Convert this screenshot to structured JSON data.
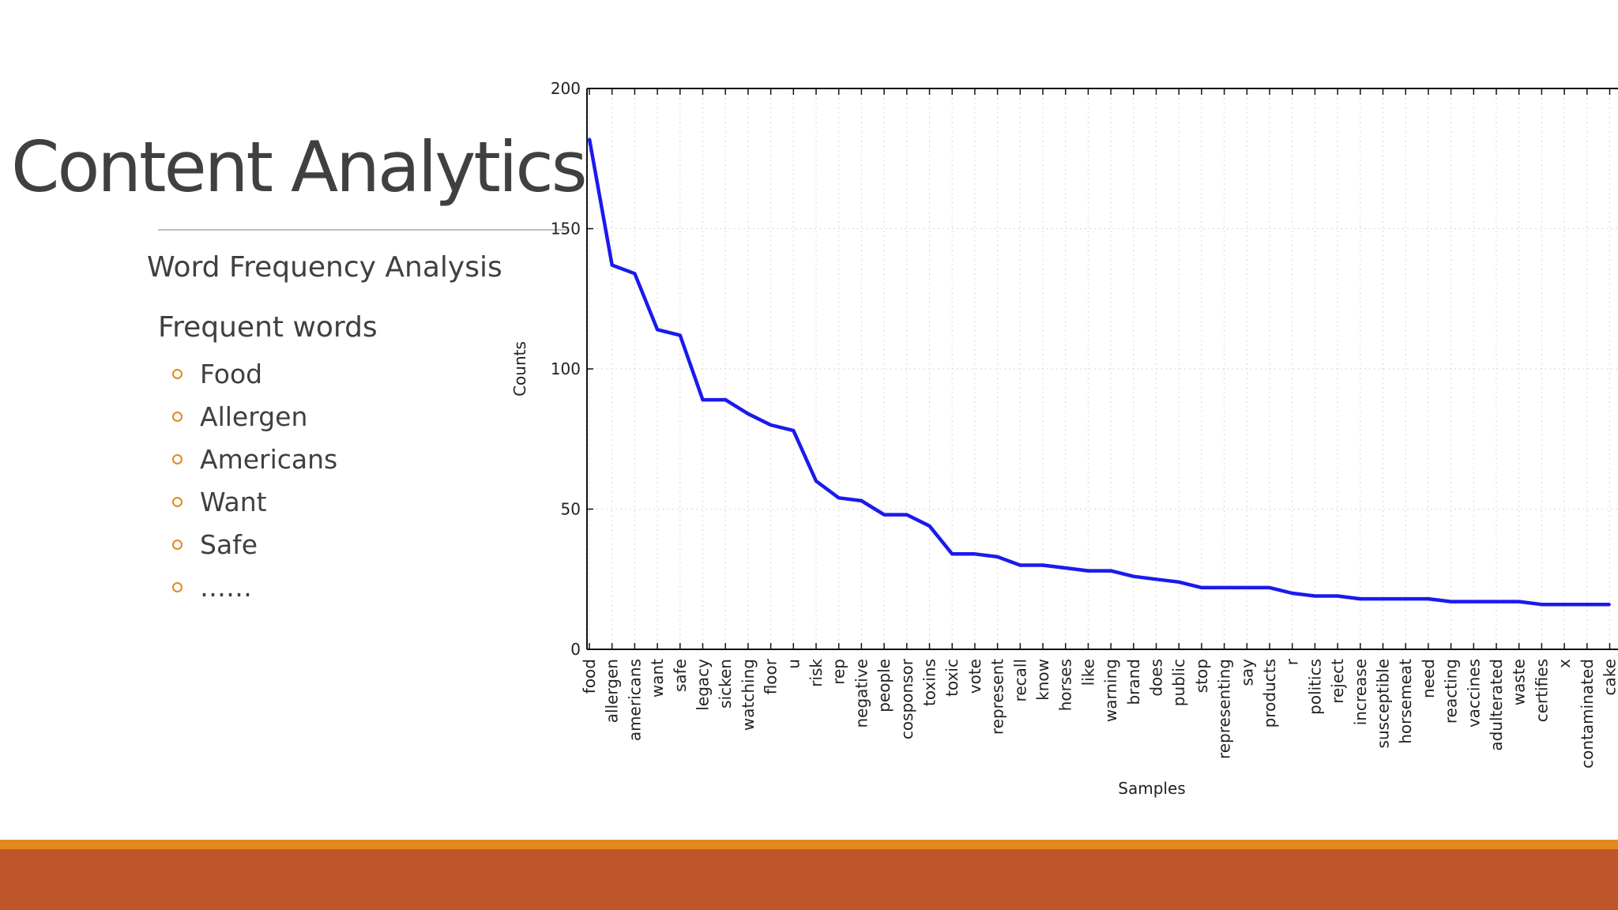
{
  "slide": {
    "title": "Content Analytics",
    "subtitle": "Word Frequency Analysis",
    "section_heading": "Frequent words",
    "bullets": [
      "Food",
      "Allergen",
      "Americans",
      "Want",
      "Safe",
      "……"
    ]
  },
  "colors": {
    "line": "#1a1aee",
    "bullet_accent": "#e28a1f",
    "footer_orange": "#e28a1f",
    "footer_rust": "#bf5629",
    "title_text": "#404040"
  },
  "chart_data": {
    "type": "line",
    "xlabel": "Samples",
    "ylabel": "Counts",
    "ylim": [
      0,
      200
    ],
    "yticks": [
      0,
      50,
      100,
      150,
      200
    ],
    "grid": true,
    "categories": [
      "food",
      "allergen",
      "americans",
      "want",
      "safe",
      "legacy",
      "sicken",
      "watching",
      "floor",
      "u",
      "risk",
      "rep",
      "negative",
      "people",
      "cosponsor",
      "toxins",
      "toxic",
      "vote",
      "represent",
      "recall",
      "know",
      "horses",
      "like",
      "warning",
      "brand",
      "does",
      "public",
      "stop",
      "representing",
      "say",
      "products",
      "r",
      "politics",
      "reject",
      "increase",
      "susceptible",
      "horsemeat",
      "need",
      "reacting",
      "vaccines",
      "adulterated",
      "waste",
      "certifies",
      "x",
      "contaminated",
      "cake"
    ],
    "series": [
      {
        "values": [
          182,
          137,
          134,
          114,
          112,
          89,
          89,
          84,
          80,
          78,
          60,
          54,
          53,
          48,
          48,
          44,
          34,
          34,
          33,
          30,
          30,
          29,
          28,
          28,
          26,
          25,
          24,
          22,
          22,
          22,
          22,
          20,
          19,
          19,
          18,
          18,
          18,
          18,
          17,
          17,
          17,
          17,
          16,
          16,
          16,
          16
        ]
      }
    ]
  }
}
